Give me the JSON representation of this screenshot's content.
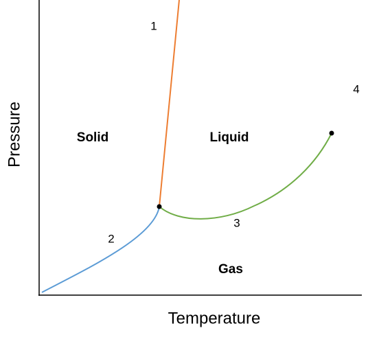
{
  "axes": {
    "x_label": "Temperature",
    "y_label": "Pressure"
  },
  "regions": [
    "Solid",
    "Liquid",
    "Gas"
  ],
  "curve_labels": [
    "1",
    "2",
    "3",
    "4"
  ]
}
